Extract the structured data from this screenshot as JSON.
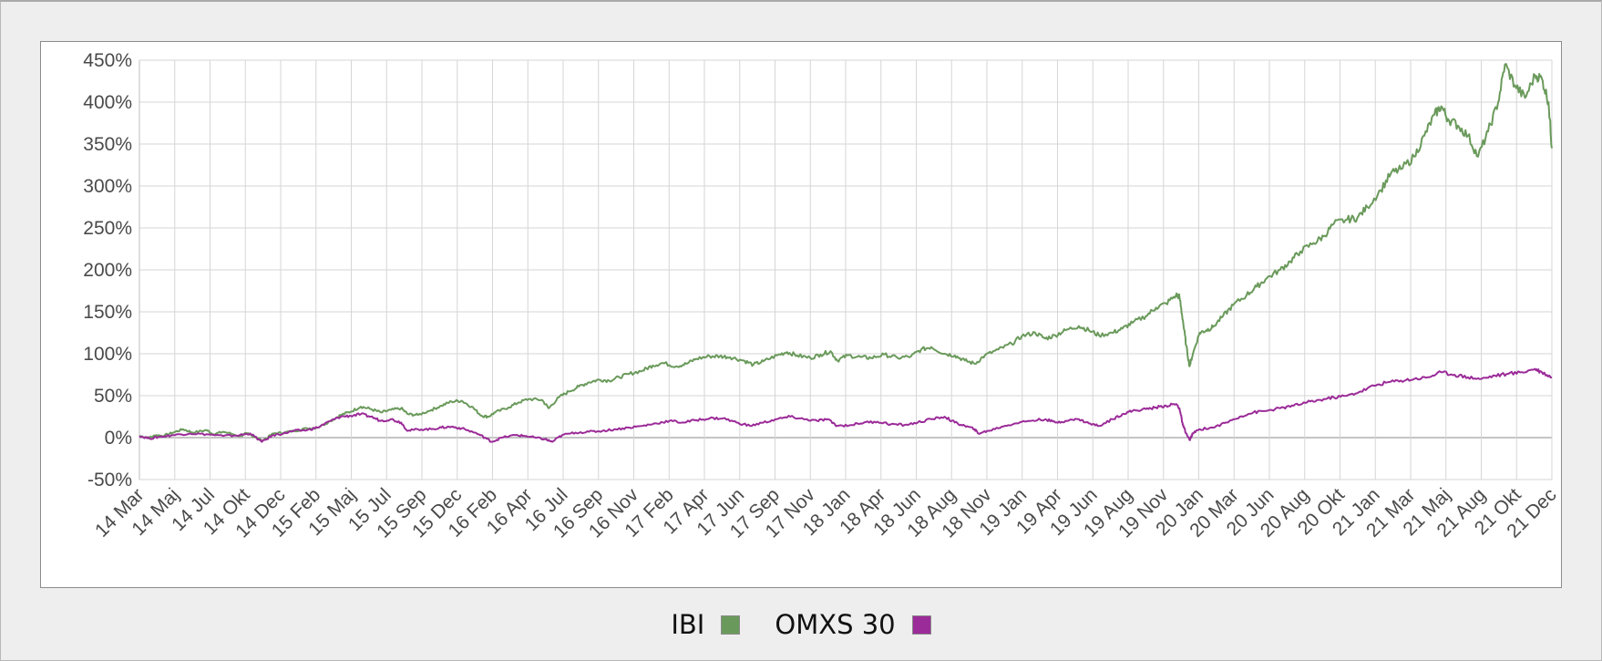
{
  "chart_data": {
    "type": "line",
    "title": "",
    "xlabel": "",
    "ylabel": "",
    "ylim": [
      -50,
      450
    ],
    "y_ticks": [
      "450%",
      "400%",
      "350%",
      "300%",
      "250%",
      "200%",
      "150%",
      "100%",
      "50%",
      "0%",
      "-50%"
    ],
    "y_tick_values": [
      450,
      400,
      350,
      300,
      250,
      200,
      150,
      100,
      50,
      0,
      -50
    ],
    "x_tick_labels": [
      "14 Mar",
      "14 Maj",
      "14 Jul",
      "14 Okt",
      "14 Dec",
      "15 Feb",
      "15 Maj",
      "15 Jul",
      "15 Sep",
      "15 Dec",
      "16 Feb",
      "16 Apr",
      "16 Jul",
      "16 Sep",
      "16 Nov",
      "17 Feb",
      "17 Apr",
      "17 Jun",
      "17 Sep",
      "17 Nov",
      "18 Jan",
      "18 Apr",
      "18 Jun",
      "18 Aug",
      "18 Nov",
      "19 Jan",
      "19 Apr",
      "19 Jun",
      "19 Aug",
      "19 Nov",
      "20 Jan",
      "20 Mar",
      "20 Jun",
      "20 Aug",
      "20 Okt",
      "21 Jan",
      "21 Mar",
      "21 Maj",
      "21 Aug",
      "21 Okt",
      "21 Dec"
    ],
    "grid": true,
    "legend_position": "bottom-center",
    "series": [
      {
        "name": "IBI",
        "color": "#6a9a5b",
        "values": [
          [
            0,
            2
          ],
          [
            0.3,
            0
          ],
          [
            0.5,
            3
          ],
          [
            0.7,
            2
          ],
          [
            1.0,
            6
          ],
          [
            1.3,
            10
          ],
          [
            1.6,
            6
          ],
          [
            2.0,
            9
          ],
          [
            2.2,
            4
          ],
          [
            2.5,
            7
          ],
          [
            3.0,
            2
          ],
          [
            3.2,
            5
          ],
          [
            3.5,
            0
          ],
          [
            3.65,
            -4
          ],
          [
            4.0,
            5
          ],
          [
            4.3,
            6
          ],
          [
            4.6,
            8
          ],
          [
            5.0,
            11
          ],
          [
            5.3,
            12
          ],
          [
            5.7,
            20
          ],
          [
            6.0,
            27
          ],
          [
            6.3,
            31
          ],
          [
            6.6,
            37
          ],
          [
            6.9,
            34
          ],
          [
            7.2,
            30
          ],
          [
            7.5,
            33
          ],
          [
            7.8,
            35
          ],
          [
            8.0,
            28
          ],
          [
            8.3,
            27
          ],
          [
            8.7,
            33
          ],
          [
            9.0,
            38
          ],
          [
            9.3,
            43
          ],
          [
            9.6,
            44
          ],
          [
            9.9,
            37
          ],
          [
            10.2,
            26
          ],
          [
            10.4,
            25
          ],
          [
            10.6,
            30
          ],
          [
            11.0,
            36
          ],
          [
            11.3,
            42
          ],
          [
            11.6,
            46
          ],
          [
            12.0,
            45
          ],
          [
            12.2,
            35
          ],
          [
            12.5,
            48
          ],
          [
            12.8,
            55
          ],
          [
            13.1,
            61
          ],
          [
            13.4,
            66
          ],
          [
            13.7,
            69
          ],
          [
            14.0,
            68
          ],
          [
            14.3,
            72
          ],
          [
            14.6,
            76
          ],
          [
            15.0,
            80
          ],
          [
            15.3,
            86
          ],
          [
            15.6,
            89
          ],
          [
            16.0,
            85
          ],
          [
            16.3,
            88
          ],
          [
            16.6,
            94
          ],
          [
            17.0,
            97
          ],
          [
            17.3,
            97
          ],
          [
            17.6,
            96
          ],
          [
            18.0,
            92
          ],
          [
            18.3,
            87
          ],
          [
            18.6,
            91
          ],
          [
            19.0,
            98
          ],
          [
            19.3,
            102
          ],
          [
            19.6,
            98
          ],
          [
            20.0,
            95
          ],
          [
            20.3,
            99
          ],
          [
            20.6,
            103
          ],
          [
            20.8,
            92
          ],
          [
            21.1,
            98
          ],
          [
            21.5,
            96
          ],
          [
            21.8,
            95
          ],
          [
            22.2,
            99
          ],
          [
            22.6,
            95
          ],
          [
            23.0,
            97
          ],
          [
            23.3,
            105
          ],
          [
            23.6,
            108
          ],
          [
            24.0,
            100
          ],
          [
            24.3,
            98
          ],
          [
            24.6,
            92
          ],
          [
            24.9,
            88
          ],
          [
            25.2,
            98
          ],
          [
            25.6,
            105
          ],
          [
            26.0,
            112
          ],
          [
            26.3,
            121
          ],
          [
            26.7,
            125
          ],
          [
            27.0,
            118
          ],
          [
            27.3,
            122
          ],
          [
            27.6,
            128
          ],
          [
            28.0,
            133
          ],
          [
            28.3,
            128
          ],
          [
            28.6,
            122
          ],
          [
            29.0,
            125
          ],
          [
            29.3,
            130
          ],
          [
            29.6,
            137
          ],
          [
            30.0,
            145
          ],
          [
            30.3,
            155
          ],
          [
            30.6,
            160
          ],
          [
            30.9,
            170
          ],
          [
            31.0,
            168
          ],
          [
            31.1,
            140
          ],
          [
            31.2,
            110
          ],
          [
            31.3,
            85
          ],
          [
            31.4,
            100
          ],
          [
            31.6,
            125
          ],
          [
            31.8,
            128
          ],
          [
            32.0,
            132
          ],
          [
            32.3,
            145
          ],
          [
            32.6,
            158
          ],
          [
            33.0,
            170
          ],
          [
            33.3,
            180
          ],
          [
            33.6,
            190
          ],
          [
            34.0,
            200
          ],
          [
            34.3,
            210
          ],
          [
            34.6,
            222
          ],
          [
            35.0,
            232
          ],
          [
            35.3,
            240
          ],
          [
            35.6,
            255
          ],
          [
            36.0,
            260
          ],
          [
            36.3,
            262
          ],
          [
            36.6,
            275
          ],
          [
            37.0,
            295
          ],
          [
            37.3,
            315
          ],
          [
            37.6,
            320
          ],
          [
            38.0,
            335
          ],
          [
            38.3,
            360
          ],
          [
            38.6,
            385
          ],
          [
            38.8,
            395
          ],
          [
            39.0,
            380
          ],
          [
            39.3,
            372
          ],
          [
            39.6,
            360
          ],
          [
            39.9,
            335
          ],
          [
            40.2,
            365
          ],
          [
            40.5,
            400
          ],
          [
            40.7,
            445
          ],
          [
            41.0,
            420
          ],
          [
            41.3,
            405
          ],
          [
            41.6,
            432
          ],
          [
            41.8,
            428
          ],
          [
            42.0,
            400
          ],
          [
            42.1,
            345
          ]
        ]
      },
      {
        "name": "OMXS 30",
        "color": "#9b2b98",
        "values": [
          [
            0,
            2
          ],
          [
            0.3,
            -1
          ],
          [
            0.6,
            1
          ],
          [
            1.0,
            3
          ],
          [
            1.5,
            5
          ],
          [
            2.0,
            4
          ],
          [
            2.5,
            2
          ],
          [
            3.0,
            3
          ],
          [
            3.3,
            5
          ],
          [
            3.65,
            -5
          ],
          [
            4.0,
            3
          ],
          [
            4.3,
            5
          ],
          [
            4.6,
            8
          ],
          [
            5.0,
            9
          ],
          [
            5.3,
            12
          ],
          [
            5.7,
            20
          ],
          [
            6.0,
            25
          ],
          [
            6.3,
            26
          ],
          [
            6.6,
            28
          ],
          [
            6.9,
            25
          ],
          [
            7.2,
            20
          ],
          [
            7.5,
            22
          ],
          [
            7.8,
            18
          ],
          [
            8.0,
            8
          ],
          [
            8.3,
            10
          ],
          [
            8.7,
            10
          ],
          [
            9.0,
            12
          ],
          [
            9.3,
            13
          ],
          [
            9.6,
            11
          ],
          [
            10.0,
            6
          ],
          [
            10.3,
            0
          ],
          [
            10.5,
            -5
          ],
          [
            10.8,
            0
          ],
          [
            11.2,
            3
          ],
          [
            11.5,
            2
          ],
          [
            11.8,
            0
          ],
          [
            12.1,
            -2
          ],
          [
            12.3,
            -5
          ],
          [
            12.6,
            3
          ],
          [
            13.0,
            6
          ],
          [
            13.4,
            7
          ],
          [
            13.8,
            8
          ],
          [
            14.2,
            10
          ],
          [
            14.6,
            12
          ],
          [
            15.0,
            14
          ],
          [
            15.4,
            17
          ],
          [
            15.8,
            20
          ],
          [
            16.2,
            18
          ],
          [
            16.6,
            21
          ],
          [
            17.0,
            23
          ],
          [
            17.4,
            23
          ],
          [
            17.8,
            18
          ],
          [
            18.2,
            14
          ],
          [
            18.6,
            18
          ],
          [
            19.0,
            22
          ],
          [
            19.4,
            25
          ],
          [
            19.8,
            22
          ],
          [
            20.2,
            20
          ],
          [
            20.5,
            22
          ],
          [
            20.8,
            14
          ],
          [
            21.2,
            15
          ],
          [
            21.6,
            18
          ],
          [
            22.0,
            19
          ],
          [
            22.4,
            16
          ],
          [
            22.8,
            15
          ],
          [
            23.2,
            18
          ],
          [
            23.6,
            22
          ],
          [
            24.0,
            25
          ],
          [
            24.3,
            18
          ],
          [
            24.6,
            14
          ],
          [
            24.9,
            10
          ],
          [
            25.0,
            5
          ],
          [
            25.3,
            8
          ],
          [
            25.7,
            13
          ],
          [
            26.1,
            17
          ],
          [
            26.5,
            20
          ],
          [
            27.0,
            22
          ],
          [
            27.3,
            18
          ],
          [
            27.6,
            20
          ],
          [
            28.0,
            22
          ],
          [
            28.3,
            17
          ],
          [
            28.6,
            14
          ],
          [
            29.0,
            22
          ],
          [
            29.3,
            28
          ],
          [
            29.6,
            32
          ],
          [
            30.0,
            34
          ],
          [
            30.3,
            36
          ],
          [
            30.6,
            38
          ],
          [
            30.9,
            40
          ],
          [
            31.0,
            35
          ],
          [
            31.1,
            15
          ],
          [
            31.2,
            5
          ],
          [
            31.3,
            -3
          ],
          [
            31.4,
            5
          ],
          [
            31.6,
            10
          ],
          [
            32.0,
            12
          ],
          [
            32.4,
            18
          ],
          [
            32.8,
            25
          ],
          [
            33.2,
            30
          ],
          [
            33.6,
            32
          ],
          [
            34.0,
            35
          ],
          [
            34.4,
            38
          ],
          [
            34.8,
            42
          ],
          [
            35.2,
            45
          ],
          [
            35.6,
            48
          ],
          [
            36.0,
            50
          ],
          [
            36.4,
            55
          ],
          [
            36.8,
            62
          ],
          [
            37.2,
            66
          ],
          [
            37.6,
            68
          ],
          [
            38.0,
            70
          ],
          [
            38.4,
            72
          ],
          [
            38.8,
            78
          ],
          [
            39.2,
            75
          ],
          [
            39.6,
            72
          ],
          [
            40.0,
            70
          ],
          [
            40.4,
            74
          ],
          [
            40.8,
            76
          ],
          [
            41.2,
            78
          ],
          [
            41.6,
            82
          ],
          [
            41.8,
            78
          ],
          [
            42.1,
            72
          ]
        ]
      }
    ]
  },
  "legend": [
    {
      "label": "IBI",
      "color": "#6a9a5b"
    },
    {
      "label": "OMXS 30",
      "color": "#9b2b98"
    }
  ]
}
